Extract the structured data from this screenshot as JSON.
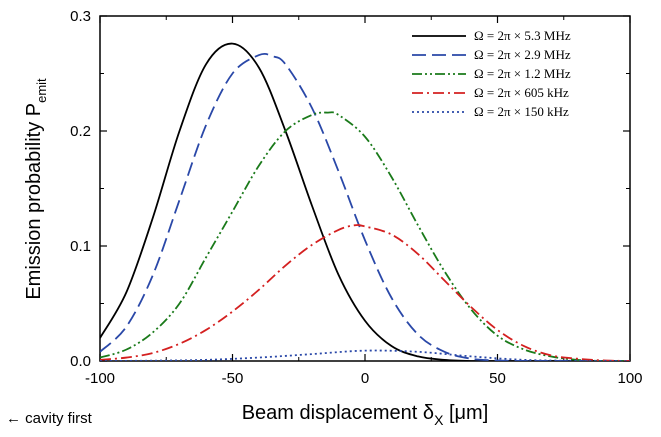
{
  "chart_data": {
    "type": "line",
    "title": "",
    "xlabel": "Beam displacement δ",
    "xlabel_sub": "X",
    "xlabel_unit": " [μm]",
    "ylabel": "Emission probability P",
    "ylabel_sub": "emit",
    "xlim": [
      -100,
      100
    ],
    "ylim": [
      0,
      0.3
    ],
    "x_ticks": [
      -100,
      -50,
      0,
      50,
      100
    ],
    "x_tick_labels": [
      "-100",
      "-50",
      "0",
      "50",
      "100"
    ],
    "y_ticks": [
      0,
      0.1,
      0.2,
      0.3
    ],
    "y_tick_labels": [
      "0.0",
      "0.1",
      "0.2",
      "0.3"
    ],
    "grid": false,
    "legend_position": "top-right",
    "annotation": "← cavity first",
    "series": [
      {
        "name": "Ω = 2π × 5.3 MHz",
        "color": "#000000",
        "dash": "solid",
        "x": [
          -100,
          -90,
          -80,
          -70,
          -60,
          -50,
          -40,
          -30,
          -20,
          -10,
          0,
          10,
          20,
          30,
          40,
          50,
          60,
          70,
          80,
          90,
          100
        ],
        "y": [
          0.02,
          0.06,
          0.125,
          0.2,
          0.258,
          0.276,
          0.255,
          0.2,
          0.135,
          0.075,
          0.035,
          0.013,
          0.004,
          0.001,
          0,
          0,
          0,
          0,
          0,
          0,
          0
        ]
      },
      {
        "name": "Ω = 2π × 2.9 MHz",
        "color": "#2a48a8",
        "dash": "dashed",
        "x": [
          -100,
          -90,
          -80,
          -70,
          -60,
          -50,
          -40,
          -35,
          -30,
          -20,
          -10,
          0,
          10,
          20,
          30,
          40,
          50,
          60,
          70,
          80,
          90,
          100
        ],
        "y": [
          0.008,
          0.03,
          0.075,
          0.14,
          0.205,
          0.25,
          0.266,
          0.265,
          0.258,
          0.22,
          0.165,
          0.105,
          0.055,
          0.023,
          0.008,
          0.002,
          0.0005,
          0,
          0,
          0,
          0,
          0
        ]
      },
      {
        "name": "Ω = 2π × 1.2 MHz",
        "color": "#1a7a1a",
        "dash": "dashdotdot",
        "x": [
          -100,
          -90,
          -80,
          -70,
          -60,
          -50,
          -40,
          -30,
          -20,
          -14,
          -10,
          0,
          10,
          20,
          30,
          40,
          50,
          60,
          70,
          80,
          90,
          100
        ],
        "y": [
          0.003,
          0.01,
          0.025,
          0.05,
          0.09,
          0.13,
          0.17,
          0.2,
          0.214,
          0.216,
          0.214,
          0.195,
          0.16,
          0.118,
          0.078,
          0.045,
          0.022,
          0.01,
          0.004,
          0.001,
          0,
          0
        ]
      },
      {
        "name": "Ω = 2π × 605 kHz",
        "color": "#d42020",
        "dash": "dashdot",
        "x": [
          -100,
          -90,
          -80,
          -70,
          -60,
          -50,
          -40,
          -30,
          -20,
          -10,
          -4,
          0,
          10,
          20,
          30,
          40,
          50,
          60,
          70,
          80,
          90,
          100
        ],
        "y": [
          0.001,
          0.003,
          0.007,
          0.015,
          0.027,
          0.043,
          0.062,
          0.083,
          0.101,
          0.114,
          0.118,
          0.117,
          0.11,
          0.093,
          0.07,
          0.047,
          0.027,
          0.013,
          0.005,
          0.002,
          0.0005,
          0
        ]
      },
      {
        "name": "Ω = 2π × 150 kHz",
        "color": "#2a48a8",
        "dash": "dotted",
        "x": [
          -100,
          -80,
          -60,
          -40,
          -20,
          0,
          20,
          40,
          60,
          80,
          100
        ],
        "y": [
          0,
          0.0003,
          0.001,
          0.003,
          0.006,
          0.009,
          0.008,
          0.004,
          0.001,
          0.0002,
          0
        ]
      }
    ]
  }
}
